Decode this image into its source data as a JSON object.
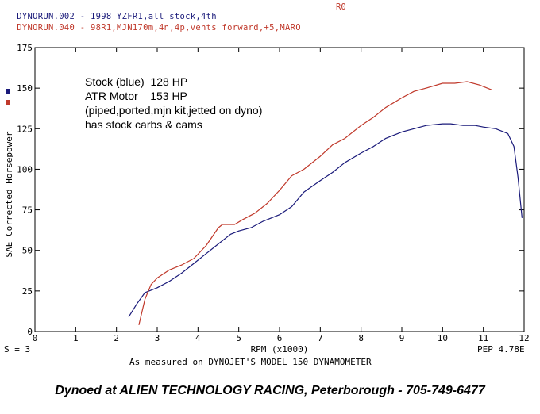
{
  "header": {
    "run1": "DYNORUN.002 - 1998 YZFR1,all stock,4th",
    "run2": "DYNORUN.040 - 98R1,MJN170m,4n,4p,vents forward,+5,MARO",
    "run_code": "R0",
    "color1": "#1a1a7a",
    "color2": "#c0392b"
  },
  "annotation": {
    "line1": "Stock (blue)  128 HP",
    "line2": "ATR Motor    153 HP",
    "line3": "(piped,ported,mjn kit,jetted on dyno)",
    "line4": "has stock carbs & cams"
  },
  "bottom": {
    "smoothing": "S = 3",
    "pep": "PEP 4.78E",
    "measured": "As measured on DYNOJET'S MODEL 150 DYNAMOMETER"
  },
  "footer": "Dynoed at ALIEN TECHNOLOGY RACING, Peterborough - 705-749-6477",
  "chart_data": {
    "type": "line",
    "xlabel": "RPM (x1000)",
    "ylabel": "SAE Corrected Horsepower",
    "xlim": [
      0,
      12
    ],
    "ylim": [
      0,
      175
    ],
    "xticks": [
      "0",
      "1",
      "2",
      "3",
      "4",
      "5",
      "6",
      "7",
      "8",
      "9",
      "10",
      "11",
      "12"
    ],
    "yticks": [
      "0",
      "25",
      "50",
      "75",
      "100",
      "125",
      "150",
      "175"
    ],
    "grid": false,
    "series": [
      {
        "color": "#1a1a7a",
        "x": [
          2.3,
          2.5,
          2.7,
          2.8,
          3.0,
          3.3,
          3.6,
          3.9,
          4.2,
          4.5,
          4.8,
          5.0,
          5.3,
          5.6,
          6.0,
          6.3,
          6.6,
          7.0,
          7.3,
          7.6,
          8.0,
          8.3,
          8.6,
          9.0,
          9.3,
          9.6,
          10.0,
          10.2,
          10.5,
          10.8,
          11.0,
          11.3,
          11.6,
          11.75,
          11.85,
          11.95
        ],
        "values": [
          9,
          17,
          24,
          25,
          27,
          31,
          36,
          42,
          48,
          54,
          60,
          62,
          64,
          68,
          72,
          77,
          86,
          93,
          98,
          104,
          110,
          114,
          119,
          123,
          125,
          127,
          128,
          128,
          127,
          127,
          126,
          125,
          122,
          114,
          95,
          70
        ]
      },
      {
        "color": "#c0392b",
        "x": [
          2.55,
          2.7,
          2.85,
          3.0,
          3.3,
          3.6,
          3.9,
          4.2,
          4.5,
          4.6,
          4.9,
          5.1,
          5.4,
          5.7,
          6.0,
          6.3,
          6.6,
          7.0,
          7.3,
          7.6,
          8.0,
          8.3,
          8.6,
          9.0,
          9.3,
          9.6,
          10.0,
          10.3,
          10.6,
          10.9,
          11.2
        ],
        "values": [
          4,
          20,
          29,
          33,
          38,
          41,
          45,
          53,
          64,
          66,
          66,
          69,
          73,
          79,
          87,
          96,
          100,
          108,
          115,
          119,
          127,
          132,
          138,
          144,
          148,
          150,
          153,
          153,
          154,
          152,
          149
        ]
      }
    ]
  }
}
